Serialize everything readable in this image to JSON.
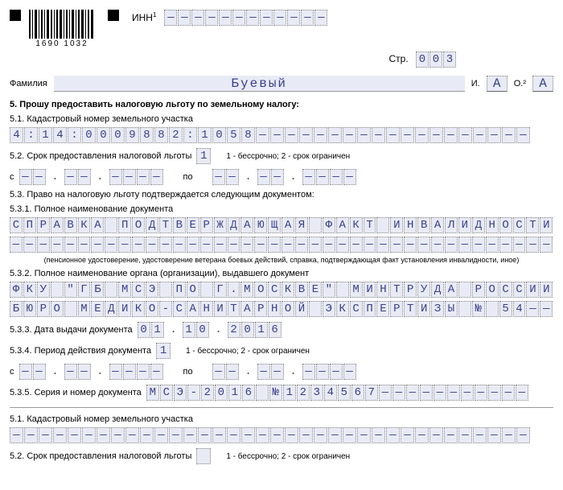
{
  "barcode_numbers": "1690   1032",
  "inn_label": "ИНН",
  "inn_cells": [
    "—",
    "—",
    "—",
    "—",
    "—",
    "—",
    "—",
    "—",
    "—",
    "—",
    "—",
    "—"
  ],
  "page_label": "Стр.",
  "page_cells": [
    "0",
    "0",
    "3"
  ],
  "surname_label": "Фамилия",
  "surname_value": "Буевый",
  "initial_i_label": "И.",
  "initial_i": "А",
  "initial_o_label": "О.²",
  "initial_o": "А",
  "s5_title": "5. Прошу предоставить налоговую льготу по земельному налогу:",
  "s51_label": "5.1. Кадастровый номер земельного участка",
  "s51_cells": [
    "4",
    ":",
    "1",
    "4",
    ":",
    "0",
    "0",
    "0",
    "9",
    "8",
    "8",
    "2",
    ":",
    "1",
    "0",
    "5",
    "8",
    "—",
    "—",
    "—",
    "—",
    "—",
    "—",
    "—",
    "—",
    "—",
    "—",
    "—",
    "—",
    "—",
    "—",
    "—",
    "—",
    "—",
    "—",
    "—"
  ],
  "s52_label": "5.2. Срок предоставления налоговой льготы",
  "s52_code": "1",
  "s52_legend": "1 - бессрочно; 2 - срок ограничен",
  "from_label": "с",
  "to_label": "по",
  "date_dd": [
    "—",
    "—"
  ],
  "date_mm": [
    "—",
    "—"
  ],
  "date_yyyy": [
    "—",
    "—",
    "—",
    "—"
  ],
  "s53_label": "5.3. Право на налоговую льготу подтверждается следующим документом:",
  "s531_label": "5.3.1. Полное наименование документа",
  "s531_line1": [
    "С",
    "П",
    "Р",
    "А",
    "В",
    "К",
    "А",
    " ",
    "П",
    "О",
    "Д",
    "Т",
    "В",
    "Е",
    "Р",
    "Ж",
    "Д",
    "А",
    "Ю",
    "Щ",
    "А",
    "Я",
    " ",
    "Ф",
    "А",
    "К",
    "Т",
    " ",
    "И",
    "Н",
    "В",
    "А",
    "Л",
    "И",
    "Д",
    "Н",
    "О",
    "С",
    "Т",
    "И"
  ],
  "s531_line2": [
    "—",
    "—",
    "—",
    "—",
    "—",
    "—",
    "—",
    "—",
    "—",
    "—",
    "—",
    "—",
    "—",
    "—",
    "—",
    "—",
    "—",
    "—",
    "—",
    "—",
    "—",
    "—",
    "—",
    "—",
    "—",
    "—",
    "—",
    "—",
    "—",
    "—",
    "—",
    "—",
    "—",
    "—",
    "—",
    "—",
    "—",
    "—",
    "—",
    "—"
  ],
  "s531_note": "(пенсионное удостоверение, удостоверение ветерана боевых действий, справка, подтверждающая факт установления инвалидности, иное)",
  "s532_label": "5.3.2. Полное наименование органа (организации), выдавшего документ",
  "s532_line1": [
    "Ф",
    "К",
    "У",
    " ",
    "\"",
    "Г",
    "Б",
    " ",
    "М",
    "С",
    "Э",
    " ",
    "П",
    "О",
    " ",
    "Г",
    ".",
    "М",
    "О",
    "С",
    "К",
    "В",
    "Е",
    "\"",
    " ",
    "М",
    "И",
    "Н",
    "Т",
    "Р",
    "У",
    "Д",
    "А",
    " ",
    "Р",
    "О",
    "С",
    "С",
    "И",
    "И"
  ],
  "s532_line2": [
    "Б",
    "Ю",
    "Р",
    "О",
    " ",
    "М",
    "Е",
    "Д",
    "И",
    "К",
    "О",
    "-",
    "С",
    "А",
    "Н",
    "И",
    "Т",
    "А",
    "Р",
    "Н",
    "О",
    "Й",
    " ",
    "Э",
    "К",
    "С",
    "П",
    "Е",
    "Р",
    "Т",
    "И",
    "З",
    "Ы",
    " ",
    "№",
    " ",
    "5",
    "4",
    "—",
    "—"
  ],
  "s533_label": "5.3.3. Дата выдачи документа",
  "s533_dd": [
    "0",
    "1"
  ],
  "s533_mm": [
    "1",
    "0"
  ],
  "s533_yyyy": [
    "2",
    "0",
    "1",
    "6"
  ],
  "s534_label": "5.3.4. Период действия документа",
  "s534_code": "1",
  "s535_label": "5.3.5. Серия и номер документа",
  "s535_cells": [
    "М",
    "С",
    "Э",
    "-",
    "2",
    "0",
    "1",
    "6",
    " ",
    "№",
    "1",
    "2",
    "3",
    "4",
    "5",
    "6",
    "7",
    "—",
    "—",
    "—",
    "—",
    "—",
    "—",
    "—",
    "—",
    "—",
    "—",
    "—"
  ],
  "s51b_label": "5.1. Кадастровый номер земельного участка",
  "s51b_cells": [
    "—",
    "—",
    "—",
    "—",
    "—",
    "—",
    "—",
    "—",
    "—",
    "—",
    "—",
    "—",
    "—",
    "—",
    "—",
    "—",
    "—",
    "—",
    "—",
    "—",
    "—",
    "—",
    "—",
    "—",
    "—",
    "—",
    "—",
    "—",
    "—",
    "—",
    "—",
    "—",
    "—",
    "—",
    "—",
    "—"
  ],
  "s52b_label": "5.2. Срок предоставления налоговой льготы",
  "dot": "."
}
